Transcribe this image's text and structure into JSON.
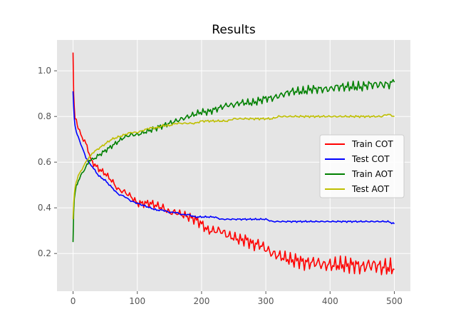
{
  "chart_data": {
    "type": "line",
    "title": "Results",
    "xlabel": "",
    "ylabel": "",
    "xlim": [
      -25,
      525
    ],
    "ylim": [
      0.035,
      1.135
    ],
    "x_ticks": [
      0,
      100,
      200,
      300,
      400,
      500
    ],
    "y_ticks": [
      0.2,
      0.4,
      0.6,
      0.8,
      1.0
    ],
    "x_tick_labels": [
      "0",
      "100",
      "200",
      "300",
      "400",
      "500"
    ],
    "y_tick_labels": [
      "0.2",
      "0.4",
      "0.6",
      "0.8",
      "1.0"
    ],
    "grid": true,
    "legend_position": "center-right",
    "x_points": [
      0,
      1,
      2,
      3,
      5,
      8,
      12,
      16,
      20,
      25,
      30,
      40,
      50,
      60,
      70,
      80,
      90,
      100,
      110,
      120,
      130,
      140,
      150,
      160,
      170,
      180,
      190,
      200,
      210,
      220,
      230,
      240,
      250,
      260,
      270,
      280,
      290,
      300,
      310,
      320,
      330,
      340,
      350,
      360,
      370,
      380,
      390,
      400,
      410,
      420,
      430,
      440,
      450,
      460,
      470,
      480,
      490,
      500
    ],
    "series": [
      {
        "name": "Train COT",
        "color": "#ff0000",
        "values": [
          1.08,
          0.9,
          0.84,
          0.8,
          0.78,
          0.75,
          0.72,
          0.7,
          0.68,
          0.63,
          0.6,
          0.57,
          0.55,
          0.52,
          0.48,
          0.47,
          0.45,
          0.42,
          0.42,
          0.42,
          0.41,
          0.4,
          0.38,
          0.38,
          0.37,
          0.36,
          0.35,
          0.33,
          0.3,
          0.3,
          0.3,
          0.28,
          0.27,
          0.26,
          0.26,
          0.24,
          0.24,
          0.22,
          0.2,
          0.19,
          0.18,
          0.17,
          0.17,
          0.16,
          0.16,
          0.16,
          0.15,
          0.15,
          0.15,
          0.15,
          0.15,
          0.15,
          0.14,
          0.15,
          0.15,
          0.14,
          0.14,
          0.13
        ]
      },
      {
        "name": "Test COT",
        "color": "#0000ff",
        "values": [
          0.91,
          0.84,
          0.79,
          0.76,
          0.73,
          0.71,
          0.68,
          0.65,
          0.62,
          0.6,
          0.58,
          0.54,
          0.52,
          0.49,
          0.46,
          0.45,
          0.43,
          0.42,
          0.41,
          0.4,
          0.39,
          0.39,
          0.38,
          0.38,
          0.37,
          0.37,
          0.36,
          0.36,
          0.36,
          0.36,
          0.35,
          0.35,
          0.35,
          0.35,
          0.35,
          0.35,
          0.35,
          0.35,
          0.34,
          0.34,
          0.34,
          0.34,
          0.34,
          0.34,
          0.34,
          0.34,
          0.34,
          0.34,
          0.34,
          0.34,
          0.34,
          0.34,
          0.34,
          0.34,
          0.34,
          0.34,
          0.34,
          0.33
        ]
      },
      {
        "name": "Train AOT",
        "color": "#008000",
        "values": [
          0.25,
          0.38,
          0.44,
          0.47,
          0.5,
          0.52,
          0.54,
          0.56,
          0.58,
          0.6,
          0.61,
          0.63,
          0.65,
          0.67,
          0.69,
          0.71,
          0.72,
          0.72,
          0.73,
          0.74,
          0.75,
          0.76,
          0.77,
          0.78,
          0.79,
          0.8,
          0.81,
          0.82,
          0.82,
          0.83,
          0.84,
          0.85,
          0.85,
          0.86,
          0.86,
          0.86,
          0.87,
          0.88,
          0.88,
          0.89,
          0.9,
          0.91,
          0.91,
          0.91,
          0.92,
          0.92,
          0.92,
          0.92,
          0.93,
          0.93,
          0.93,
          0.93,
          0.93,
          0.94,
          0.94,
          0.94,
          0.94,
          0.95
        ]
      },
      {
        "name": "Test AOT",
        "color": "#bfbf00",
        "values": [
          0.35,
          0.42,
          0.46,
          0.49,
          0.51,
          0.54,
          0.56,
          0.58,
          0.6,
          0.62,
          0.64,
          0.66,
          0.68,
          0.7,
          0.71,
          0.72,
          0.73,
          0.73,
          0.74,
          0.75,
          0.75,
          0.76,
          0.76,
          0.77,
          0.77,
          0.77,
          0.77,
          0.78,
          0.78,
          0.78,
          0.78,
          0.78,
          0.79,
          0.79,
          0.79,
          0.79,
          0.79,
          0.79,
          0.79,
          0.8,
          0.8,
          0.8,
          0.8,
          0.8,
          0.8,
          0.8,
          0.8,
          0.8,
          0.8,
          0.8,
          0.8,
          0.8,
          0.8,
          0.8,
          0.8,
          0.8,
          0.81,
          0.8
        ]
      }
    ]
  }
}
